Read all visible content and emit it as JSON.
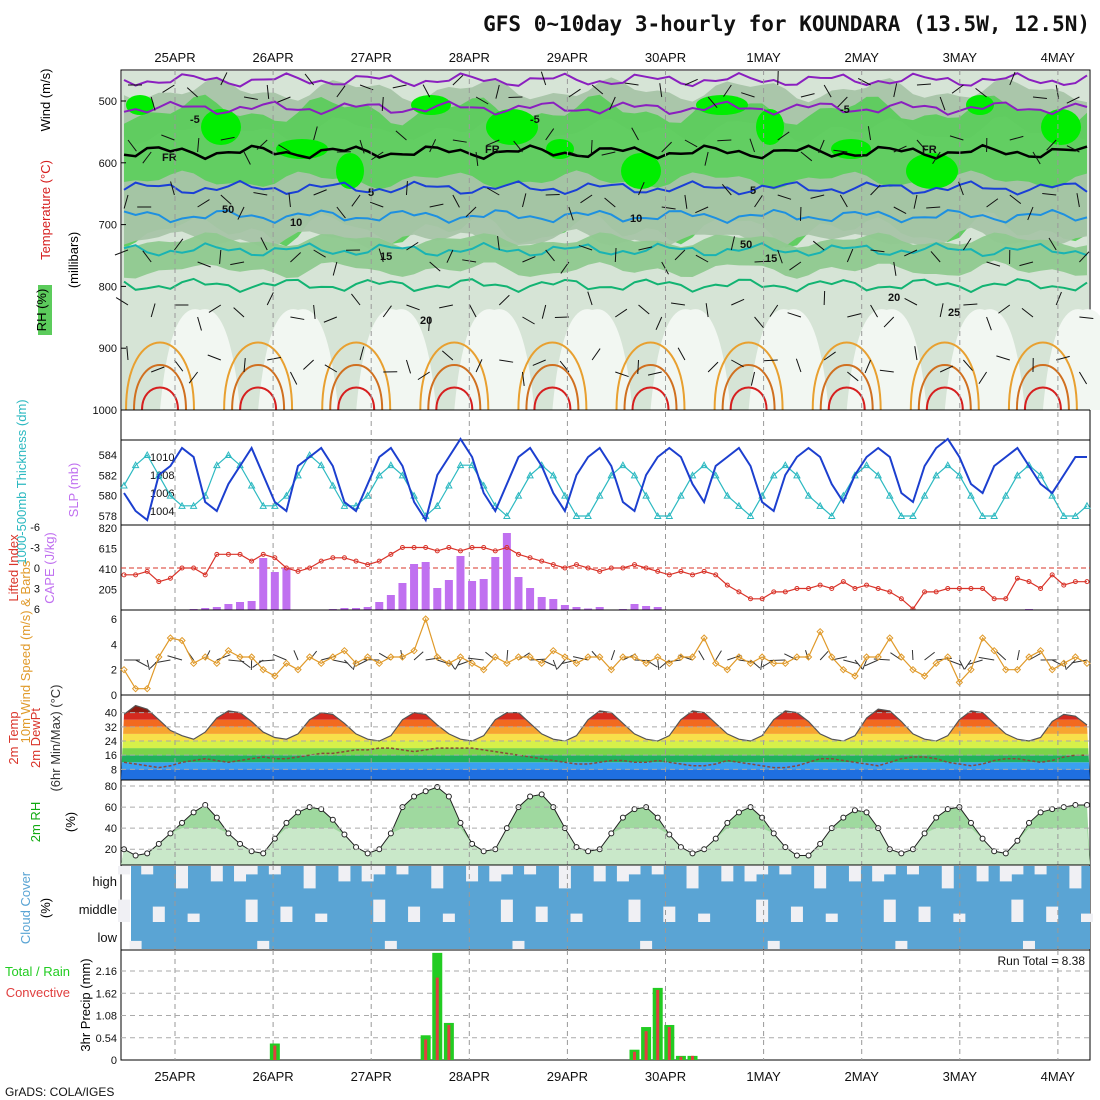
{
  "title": "GFS 0~10day 3-hourly for KOUNDARA (13.5W, 12.5N)",
  "dates": [
    "25APR",
    "26APR",
    "27APR",
    "28APR",
    "29APR",
    "30APR",
    "1MAY",
    "2MAY",
    "3MAY",
    "4MAY"
  ],
  "footer": "GrADS: COLA/IGES",
  "colors": {
    "rh_light": "#d6e4d6",
    "rh_mid": "#a8c4a8",
    "rh_green": "#5ccc5c",
    "rh_bright": "#00ee00",
    "wind": "#111111",
    "temp_cold": "#8a1fbf",
    "temp_blue": "#1a3fd6",
    "temp_cyan": "#19b3b3",
    "temp_green": "#12b372",
    "temp_orange": "#e39a2a",
    "temp_red": "#d61f1f",
    "slp": "#1c3fcf",
    "thickness": "#2cb9c1",
    "cape": "#c070f0",
    "li": "#d9342a",
    "wind10": "#e09a2a",
    "cloud": "#5aa4d4",
    "precip_total": "#22cc22",
    "precip_conv": "#e04040"
  },
  "chart_data": [
    {
      "type": "heatmap",
      "name": "upper",
      "ylabels": [
        "Temperature (°C)",
        "Wind (m/s)",
        "(millibars)",
        "RH (%)"
      ],
      "y_ticks": [
        500,
        600,
        700,
        800,
        900,
        1000
      ],
      "ylim": [
        1000,
        450
      ],
      "rh_contours": [
        50,
        70,
        90
      ],
      "temp_contour_labels": [
        "-5",
        "-5",
        "-5",
        "FR",
        "FR",
        "FR",
        "5",
        "5",
        "10",
        "10",
        "15",
        "15",
        "20",
        "20",
        "50",
        "50",
        "25"
      ]
    },
    {
      "type": "line",
      "name": "slp_thickness",
      "ylabels": [
        "1000-500mb Thickness (dm)",
        "SLP (mb)"
      ],
      "left_ticks": [
        578,
        580,
        582,
        584
      ],
      "right_ticks": [
        1004,
        1006,
        1008,
        1010
      ],
      "series": [
        {
          "name": "SLP",
          "values": [
            1006,
            1004,
            1003,
            1008,
            1009,
            1011,
            1010,
            1005,
            1004,
            1007,
            1009,
            1011,
            1008,
            1005,
            1004,
            1009,
            1010,
            1011,
            1009,
            1005,
            1004,
            1007,
            1010,
            1011,
            1009,
            1005,
            1003,
            1008,
            1010,
            1012,
            1010,
            1006,
            1004,
            1007,
            1010,
            1011,
            1009,
            1006,
            1004,
            1008,
            1010,
            1011,
            1009,
            1005,
            1004,
            1008,
            1010,
            1011,
            1010,
            1007,
            1005,
            1009,
            1010,
            1011,
            1009,
            1005,
            1004,
            1008,
            1010,
            1011,
            1010,
            1007,
            1005,
            1008,
            1010,
            1011,
            1010,
            1006,
            1005,
            1009,
            1011,
            1012,
            1010,
            1007,
            1006,
            1009,
            1010,
            1011,
            1009,
            1007,
            1006,
            1008,
            1010,
            1010
          ]
        },
        {
          "name": "Thickness",
          "values": [
            581,
            583,
            584,
            582,
            580,
            579,
            579,
            580,
            583,
            584,
            583,
            581,
            579,
            579,
            580,
            582,
            584,
            583,
            581,
            579,
            579,
            580,
            582,
            583,
            582,
            580,
            578,
            579,
            581,
            583,
            583,
            581,
            579,
            578,
            580,
            582,
            583,
            582,
            580,
            578,
            578,
            580,
            582,
            583,
            582,
            580,
            578,
            578,
            580,
            582,
            583,
            582,
            580,
            579,
            578,
            580,
            582,
            583,
            582,
            580,
            579,
            578,
            580,
            582,
            583,
            582,
            580,
            578,
            578,
            580,
            582,
            583,
            582,
            580,
            578,
            578,
            580,
            582,
            583,
            582,
            580,
            578,
            578,
            579
          ]
        }
      ]
    },
    {
      "type": "bar",
      "name": "cape_li",
      "ylabels": [
        "Lifted Index",
        "CAPE (J/kg)"
      ],
      "left_ticks": [
        -6,
        -3,
        0,
        3,
        6
      ],
      "right_ticks": [
        205,
        410,
        615,
        820
      ],
      "cape": [
        0,
        0,
        0,
        0,
        0,
        5,
        10,
        20,
        30,
        60,
        80,
        90,
        520,
        380,
        420,
        0,
        0,
        0,
        10,
        20,
        20,
        30,
        80,
        150,
        270,
        460,
        480,
        220,
        300,
        540,
        290,
        310,
        530,
        770,
        330,
        220,
        130,
        110,
        50,
        30,
        15,
        30,
        5,
        10,
        60,
        40,
        30,
        0,
        0,
        0,
        0,
        0,
        0,
        0,
        0,
        0,
        0,
        0,
        0,
        0,
        0,
        0,
        0,
        0,
        0,
        0,
        0,
        0,
        0,
        0,
        0,
        0,
        0,
        0,
        0,
        0,
        0,
        0,
        10,
        0,
        0,
        0,
        0,
        0
      ],
      "lifted_index": [
        1,
        1,
        0.5,
        2,
        1.5,
        0,
        0,
        1,
        -2,
        -2,
        -2,
        -1,
        -2,
        -1.5,
        0,
        0.5,
        0,
        -1,
        -1.5,
        -1.5,
        -1,
        -0.5,
        -1,
        -2,
        -3,
        -3,
        -3,
        -2.5,
        -3,
        -2.5,
        -3,
        -3,
        -2.5,
        -3,
        -2,
        -1.5,
        -1,
        -0.5,
        0,
        -0.5,
        0,
        0.5,
        0,
        0,
        -0.5,
        0,
        0.5,
        1,
        0.5,
        1,
        0.5,
        1,
        2.5,
        3.5,
        4.5,
        4.5,
        3.5,
        3.5,
        3,
        3,
        2.5,
        3,
        2,
        3,
        2.5,
        3,
        3.5,
        4.5,
        6,
        3.5,
        3.5,
        3,
        3,
        3,
        3,
        4.5,
        4.5,
        1.5,
        2,
        3,
        1,
        2.5,
        2,
        2
      ]
    },
    {
      "type": "line",
      "name": "wind10",
      "ylabels": [
        "10m Wind Speed (m/s) & Barbs"
      ],
      "y_ticks": [
        0,
        2,
        4,
        6
      ],
      "values": [
        2,
        0.5,
        0.5,
        3,
        4.5,
        4.3,
        2.5,
        3,
        2.5,
        3.5,
        3,
        3,
        2,
        1.5,
        2.5,
        2,
        3,
        2.5,
        3,
        3.5,
        2.5,
        3,
        2.5,
        3,
        3,
        3.5,
        6,
        3,
        2.5,
        3,
        2.5,
        2,
        3,
        2.5,
        3,
        3,
        2.5,
        3.5,
        3,
        2.5,
        3,
        3,
        2,
        3,
        3,
        2.5,
        3,
        2.5,
        3,
        3,
        4.5,
        2.5,
        2,
        3,
        2.5,
        3,
        2.5,
        2.5,
        3,
        3,
        5,
        3,
        2,
        1.5,
        3,
        3,
        4.5,
        3,
        2,
        1.5,
        2.5,
        3,
        1,
        2,
        4.5,
        3.5,
        2,
        2,
        3,
        3.5,
        2,
        2.5,
        3,
        2.5
      ]
    },
    {
      "type": "area",
      "name": "temp2m",
      "ylabels": [
        "2m Temp",
        "2m DewPt",
        "(6hr Min/Max) (°C)"
      ],
      "y_ticks": [
        8,
        16,
        24,
        32,
        40
      ],
      "temp": [
        39,
        44,
        42,
        36,
        30,
        27,
        25,
        29,
        37,
        41,
        40,
        35,
        29,
        26,
        25,
        28,
        36,
        40,
        39,
        34,
        28,
        25,
        24,
        27,
        36,
        40,
        39,
        33,
        28,
        25,
        24,
        27,
        36,
        40,
        40,
        34,
        28,
        25,
        24,
        27,
        36,
        41,
        40,
        34,
        28,
        25,
        24,
        27,
        36,
        41,
        40,
        34,
        28,
        25,
        24,
        27,
        36,
        41,
        40,
        35,
        28,
        25,
        24,
        27,
        37,
        42,
        41,
        35,
        28,
        25,
        24,
        27,
        36,
        41,
        40,
        34,
        28,
        25,
        24,
        26,
        35,
        39,
        38,
        33
      ],
      "dewpt": [
        12,
        11,
        10,
        9,
        10,
        12,
        13,
        14,
        13,
        12,
        13,
        14,
        15,
        14,
        14,
        15,
        16,
        17,
        17,
        18,
        19,
        19,
        20,
        20,
        19,
        18,
        19,
        20,
        20,
        20,
        20,
        19,
        18,
        17,
        16,
        15,
        14,
        13,
        12,
        11,
        11,
        12,
        13,
        13,
        12,
        12,
        13,
        12,
        11,
        10,
        10,
        11,
        13,
        12,
        11,
        10,
        9,
        9,
        10,
        12,
        14,
        14,
        13,
        12,
        11,
        10,
        12,
        14,
        15,
        15,
        14,
        12,
        11,
        10,
        11,
        13,
        14,
        14,
        13,
        12,
        13,
        15,
        16,
        16
      ]
    },
    {
      "type": "area",
      "name": "rh2m",
      "ylabels": [
        "2m RH",
        "(%)"
      ],
      "y_ticks": [
        20,
        40,
        60,
        80
      ],
      "values": [
        20,
        14,
        16,
        25,
        35,
        45,
        55,
        62,
        50,
        35,
        25,
        18,
        16,
        30,
        45,
        55,
        60,
        58,
        48,
        34,
        22,
        16,
        20,
        35,
        60,
        70,
        75,
        79,
        70,
        45,
        25,
        18,
        20,
        40,
        60,
        70,
        72,
        60,
        40,
        22,
        18,
        20,
        35,
        50,
        58,
        60,
        50,
        34,
        22,
        16,
        20,
        30,
        45,
        55,
        60,
        50,
        35,
        22,
        14,
        14,
        25,
        40,
        50,
        57,
        55,
        40,
        20,
        16,
        20,
        35,
        50,
        58,
        60,
        45,
        30,
        18,
        16,
        28,
        45,
        55,
        58,
        60,
        62,
        62
      ]
    },
    {
      "type": "heatmap",
      "name": "cloud",
      "ylabels": [
        "Cloud Cover",
        "(%)"
      ],
      "levels": [
        "high",
        "middle",
        "low"
      ]
    },
    {
      "type": "bar",
      "name": "precip",
      "ylabels": [
        "Total / Rain",
        "Convective",
        "3hr Precip (mm)"
      ],
      "y_ticks": [
        0,
        0.54,
        1.08,
        1.62,
        2.16
      ],
      "run_total_label": "Run Total = 8.38",
      "total": [
        0,
        0,
        0,
        0,
        0,
        0,
        0,
        0,
        0,
        0,
        0,
        0,
        0,
        0.4,
        0,
        0,
        0,
        0,
        0,
        0,
        0,
        0,
        0,
        0,
        0,
        0,
        0.6,
        2.6,
        0.9,
        0,
        0,
        0,
        0,
        0,
        0,
        0,
        0,
        0,
        0,
        0,
        0,
        0,
        0,
        0,
        0.25,
        0.8,
        1.75,
        0.85,
        0.1,
        0.1,
        0,
        0,
        0,
        0,
        0,
        0,
        0,
        0,
        0,
        0,
        0,
        0,
        0,
        0,
        0,
        0,
        0,
        0,
        0,
        0,
        0,
        0,
        0,
        0,
        0,
        0,
        0,
        0,
        0,
        0,
        0,
        0,
        0,
        0
      ],
      "convective": [
        0,
        0,
        0,
        0,
        0,
        0,
        0,
        0,
        0,
        0,
        0,
        0,
        0,
        0.35,
        0,
        0,
        0,
        0,
        0,
        0,
        0,
        0,
        0,
        0,
        0,
        0,
        0.5,
        2.0,
        0.85,
        0,
        0,
        0,
        0,
        0,
        0,
        0,
        0,
        0,
        0,
        0,
        0,
        0,
        0,
        0,
        0.2,
        0.7,
        1.7,
        0.8,
        0.08,
        0.1,
        0,
        0,
        0,
        0,
        0,
        0,
        0,
        0,
        0,
        0,
        0,
        0,
        0,
        0,
        0,
        0,
        0,
        0,
        0,
        0,
        0,
        0,
        0,
        0,
        0,
        0,
        0,
        0,
        0,
        0,
        0,
        0,
        0,
        0
      ]
    }
  ]
}
